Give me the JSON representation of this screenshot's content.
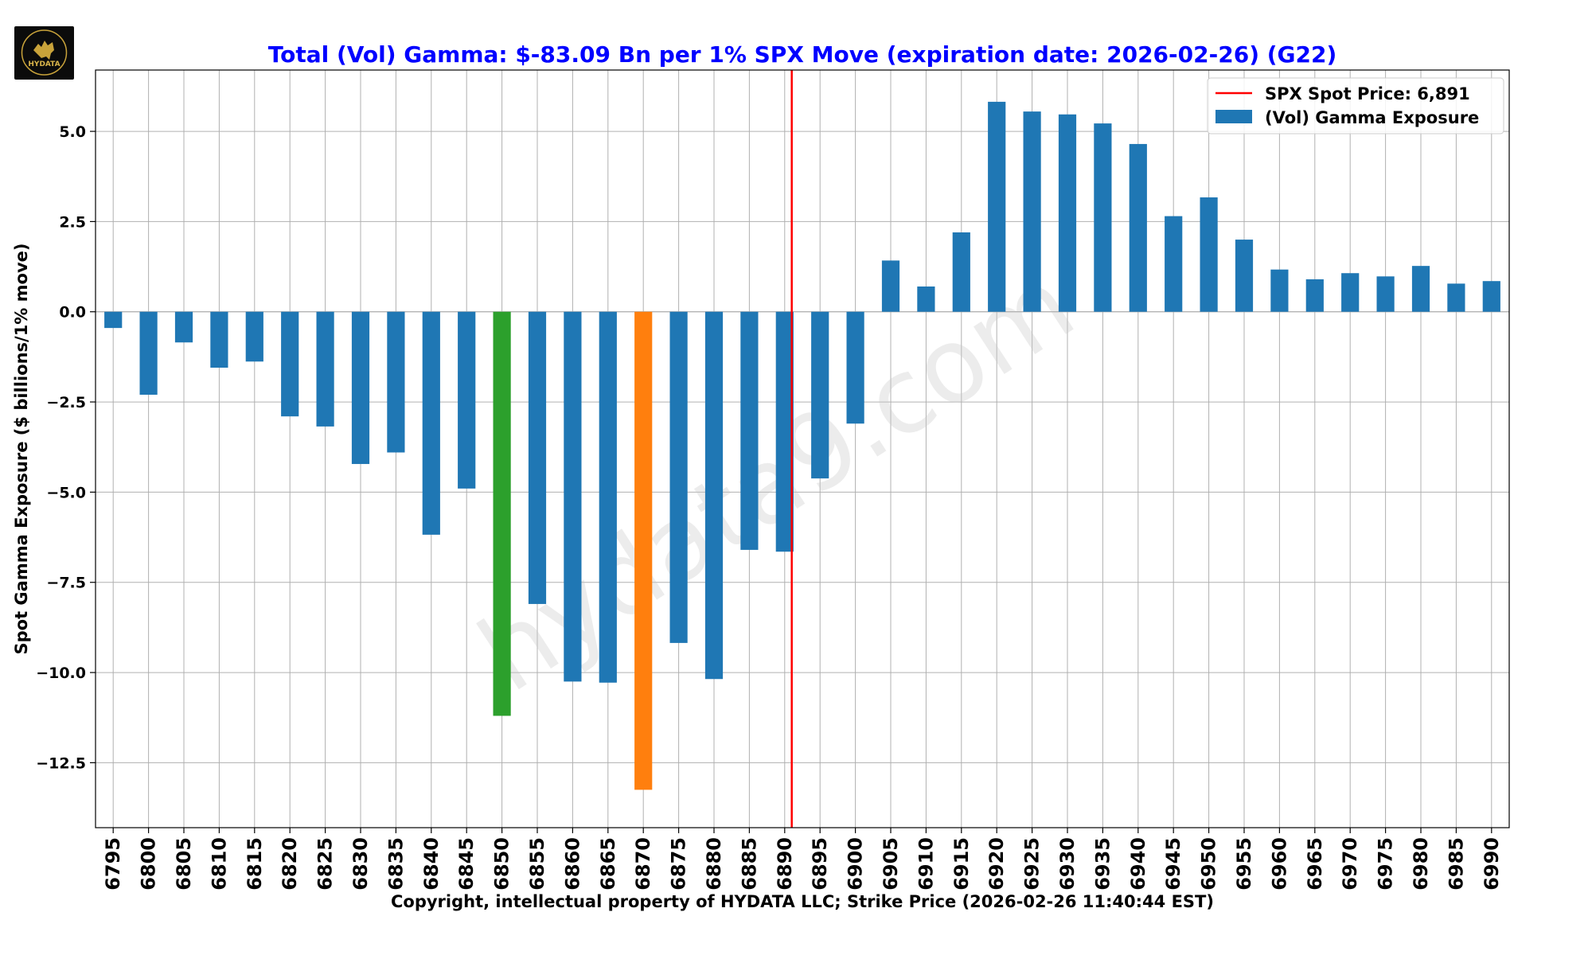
{
  "logo": {
    "text": "HYDATA"
  },
  "watermark": "hydata9.com",
  "chart_data": {
    "type": "bar",
    "title": "Total (Vol) Gamma: $-83.09 Bn per 1% SPX Move (expiration date: 2026-02-26) (G22)",
    "xlabel": "Copyright, intellectual property of HYDATA LLC; Strike Price (2026-02-26 11:40:44 EST)",
    "ylabel": "Spot Gamma Exposure ($ billions/1% move)",
    "ylim": [
      -14.3,
      6.7
    ],
    "yticks": [
      5.0,
      2.5,
      0.0,
      -2.5,
      -5.0,
      -7.5,
      -10.0,
      -12.5
    ],
    "ytick_labels": [
      "5.0",
      "2.5",
      "0.0",
      "−2.5",
      "−5.0",
      "−7.5",
      "−10.0",
      "−12.5"
    ],
    "categories": [
      "6795",
      "6800",
      "6805",
      "6810",
      "6815",
      "6820",
      "6825",
      "6830",
      "6835",
      "6840",
      "6845",
      "6850",
      "6855",
      "6860",
      "6865",
      "6870",
      "6875",
      "6880",
      "6885",
      "6890",
      "6895",
      "6900",
      "6905",
      "6910",
      "6915",
      "6920",
      "6925",
      "6930",
      "6935",
      "6940",
      "6945",
      "6950",
      "6955",
      "6960",
      "6965",
      "6970",
      "6975",
      "6980",
      "6985",
      "6990"
    ],
    "values": [
      -0.45,
      -2.3,
      -0.85,
      -1.55,
      -1.38,
      -2.9,
      -3.18,
      -4.22,
      -3.9,
      -6.18,
      -4.9,
      -11.2,
      -8.1,
      -10.25,
      -10.28,
      -13.25,
      -9.18,
      -10.18,
      -6.6,
      -6.65,
      -4.62,
      -3.1,
      1.42,
      0.7,
      2.2,
      5.82,
      5.55,
      5.47,
      5.22,
      4.65,
      2.65,
      3.17,
      2.0,
      1.17,
      0.9,
      1.07,
      0.98,
      1.27,
      0.78,
      0.85
    ],
    "colors": {
      "default": "#1f77b4",
      "highlight_green": "#2ca02c",
      "highlight_orange": "#ff7f0e",
      "spot_line": "#ff0000",
      "title": "#0000ff",
      "grid": "#b0b0b0"
    },
    "highlights": {
      "6850": "highlight_green",
      "6870": "highlight_orange"
    },
    "spot": {
      "value": 6891,
      "label": "SPX Spot Price: 6,891"
    },
    "legend": {
      "position": "top-right",
      "entries": [
        "SPX Spot Price: 6,891",
        "(Vol) Gamma Exposure"
      ]
    },
    "grid": true
  }
}
